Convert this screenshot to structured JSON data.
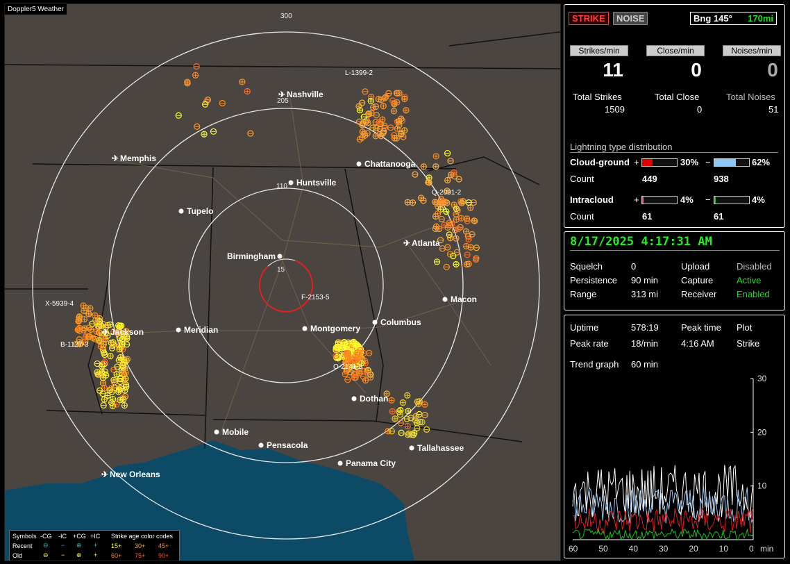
{
  "map": {
    "title": "Doppler5 Weather",
    "ring_labels": [
      "300",
      "205",
      "110",
      "15"
    ],
    "cities": [
      {
        "name": "Nashville",
        "airport": true
      },
      {
        "name": "Memphis",
        "airport": true
      },
      {
        "name": "Chattanooga",
        "airport": false
      },
      {
        "name": "Huntsville",
        "airport": false
      },
      {
        "name": "Tupelo",
        "airport": false
      },
      {
        "name": "Atlanta",
        "airport": true
      },
      {
        "name": "Birmingham",
        "airport": false
      },
      {
        "name": "Macon",
        "airport": false
      },
      {
        "name": "Jackson",
        "airport": true
      },
      {
        "name": "Meridian",
        "airport": false
      },
      {
        "name": "Montgomery",
        "airport": false
      },
      {
        "name": "Columbus",
        "airport": false
      },
      {
        "name": "Dothan",
        "airport": false
      },
      {
        "name": "Mobile",
        "airport": false
      },
      {
        "name": "Pensacola",
        "airport": false
      },
      {
        "name": "Tallahassee",
        "airport": false
      },
      {
        "name": "Panama City",
        "airport": false
      },
      {
        "name": "New Orleans",
        "airport": true
      }
    ],
    "storm_labels": [
      "L-1399-2",
      "Q-2091-2",
      "X-5939-4",
      "B-1127-3",
      "F-2153-5",
      "O-2141-3"
    ]
  },
  "legend": {
    "symbols_label": "Symbols",
    "headers": [
      "-CG",
      "-IC",
      "+CG",
      "+IC"
    ],
    "age_title": "Strike age color codes",
    "rows": [
      {
        "label": "Recent",
        "ages": [
          "15+",
          "30+",
          "45+"
        ]
      },
      {
        "label": "Old",
        "ages": [
          "60+",
          "75+",
          "90+"
        ]
      }
    ]
  },
  "stats": {
    "strike_btn": "STRIKE",
    "noise_btn": "NOISE",
    "bearing": "Bng 145°",
    "distance": "170mi",
    "headers": [
      "Strikes/min",
      "Close/min",
      "Noises/min"
    ],
    "rates": [
      "11",
      "0",
      "0"
    ],
    "total_labels": [
      "Total Strikes",
      "Total Close",
      "Total Noises"
    ],
    "totals": [
      "1509",
      "0",
      "51"
    ],
    "dist_title": "Lightning type distribution",
    "cg_label": "Cloud-ground",
    "ic_label": "Intracloud",
    "count_label": "Count",
    "cg_pos": {
      "sign": "+",
      "pct": "30%",
      "fill": 0.3,
      "count": "449"
    },
    "cg_neg": {
      "sign": "−",
      "pct": "62%",
      "fill": 0.62,
      "count": "938"
    },
    "ic_pos": {
      "sign": "+",
      "pct": "4%",
      "fill": 0.04,
      "count": "61"
    },
    "ic_neg": {
      "sign": "−",
      "pct": "4%",
      "fill": 0.04,
      "count": "61"
    },
    "colors": {
      "cg_pos": "#e00000",
      "cg_neg": "#8ec8f8",
      "ic_pos": "#e060a0",
      "ic_neg": "#20c020"
    }
  },
  "status": {
    "datetime": "8/17/2025 4:17:31 AM",
    "rows": [
      {
        "k1": "Squelch",
        "v1": "0",
        "k2": "Upload",
        "v2": "Disabled",
        "v2color": "#bbbbbb"
      },
      {
        "k1": "Persistence",
        "v1": "90 min",
        "k2": "Capture",
        "v2": "Active",
        "v2color": "#22dd22"
      },
      {
        "k1": "Range",
        "v1": "313 mi",
        "k2": "Receiver",
        "v2": "Enabled",
        "v2color": "#22dd22"
      }
    ]
  },
  "trend": {
    "uptime_label": "Uptime",
    "uptime": "578:19",
    "peak_time_label": "Peak time",
    "peak_time": "4:16 AM",
    "plot_label": "Plot",
    "plot": "Strike",
    "peak_rate_label": "Peak rate",
    "peak_rate": "18/min",
    "graph_label": "Trend graph",
    "graph_window": "60 min",
    "y_ticks": [
      "30",
      "20",
      "10"
    ],
    "x_ticks": [
      "60",
      "50",
      "40",
      "30",
      "20",
      "10",
      "0"
    ],
    "x_unit": "min"
  }
}
